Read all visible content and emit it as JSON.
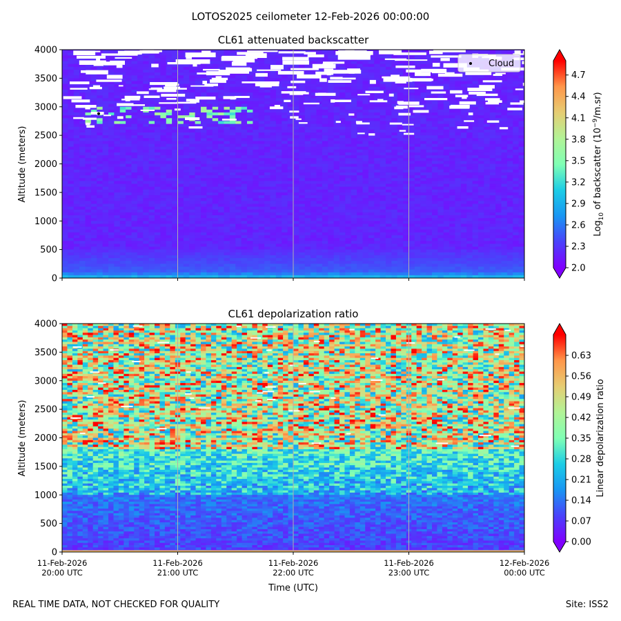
{
  "figure": {
    "suptitle": "LOTOS2025 ceilometer 12-Feb-2026 00:00:00",
    "footer_left": "REAL TIME DATA, NOT CHECKED FOR QUALITY",
    "footer_right": "Site: ISS2",
    "colormap": "rainbow"
  },
  "chart_data": [
    {
      "type": "heatmap",
      "title": "CL61 attenuated backscatter",
      "ylabel": "Altitude (meters)",
      "ylim": [
        0,
        4000
      ],
      "yticks": [
        0,
        500,
        1000,
        1500,
        2000,
        2500,
        3000,
        3500,
        4000
      ],
      "x_time_range": [
        "11-Feb-2026 20:00 UTC",
        "12-Feb-2026 00:00 UTC"
      ],
      "grid": "vertical lines at hourly ticks",
      "colorbar": {
        "label": "Log10 of backscatter (10^-9/m.sr)",
        "label_base": "Log",
        "label_sub": "10",
        "label_mid": " of backscatter (10",
        "label_sup": "−9",
        "label_end": "/m.sr)",
        "range": [
          2.0,
          4.9
        ],
        "ticks": [
          "2.0",
          "2.3",
          "2.6",
          "2.9",
          "3.2",
          "3.5",
          "3.8",
          "4.1",
          "4.4",
          "4.7"
        ],
        "extend": "both"
      },
      "legend": {
        "label": "Cloud",
        "position": "upper right",
        "marker": "black dot"
      },
      "cloud_points": [
        {
          "time": "11-Feb-2026 20:19 UTC",
          "altitude": 2880
        }
      ],
      "features": [
        {
          "description": "background",
          "altitude": [
            0,
            2500
          ],
          "value": 2.2
        },
        {
          "description": "near-surface enhancement",
          "altitude": [
            0,
            100
          ],
          "value": 2.9
        },
        {
          "description": "elevated layer",
          "altitude": [
            2700,
            3000
          ],
          "time": [
            "20:10",
            "21:40"
          ],
          "value": 3.8
        },
        {
          "description": "noisy/masked region",
          "altitude": [
            2500,
            4000
          ]
        }
      ]
    },
    {
      "type": "heatmap",
      "title": "CL61 depolarization ratio",
      "xlabel": "Time (UTC)",
      "ylabel": "Altitude (meters)",
      "ylim": [
        0,
        4000
      ],
      "yticks": [
        0,
        500,
        1000,
        1500,
        2000,
        2500,
        3000,
        3500,
        4000
      ],
      "xticks": [
        [
          "11-Feb-2026",
          "20:00 UTC"
        ],
        [
          "11-Feb-2026",
          "21:00 UTC"
        ],
        [
          "11-Feb-2026",
          "22:00 UTC"
        ],
        [
          "11-Feb-2026",
          "23:00 UTC"
        ],
        [
          "12-Feb-2026",
          "00:00 UTC"
        ]
      ],
      "grid": "vertical lines at hourly ticks",
      "colorbar": {
        "label": "Linear depolarization ratio",
        "range": [
          0.0,
          0.7
        ],
        "ticks": [
          "0.00",
          "0.07",
          "0.14",
          "0.21",
          "0.28",
          "0.35",
          "0.42",
          "0.49",
          "0.56",
          "0.63"
        ],
        "extend": "both"
      },
      "features": [
        {
          "description": "low depolarization",
          "altitude": [
            0,
            1000
          ],
          "value": 0.08
        },
        {
          "description": "transition",
          "altitude": [
            1000,
            1800
          ],
          "value": 0.22
        },
        {
          "description": "noisy high values",
          "altitude": [
            1800,
            4000
          ],
          "value": 0.45
        },
        {
          "description": "surface line",
          "altitude": [
            0,
            30
          ],
          "value": 0.56
        }
      ]
    }
  ]
}
